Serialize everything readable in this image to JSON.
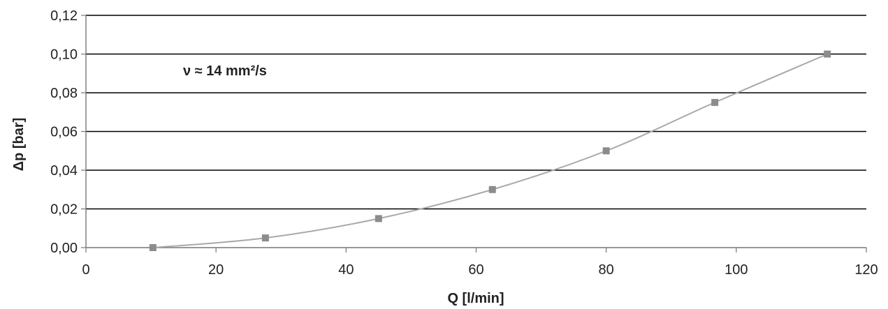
{
  "chart_data": {
    "type": "line",
    "title": "",
    "xlabel": "Q [l/min]",
    "ylabel": "Δp [bar]",
    "annotation": "ν ≈  14 mm²/s",
    "xlim": [
      0,
      120
    ],
    "ylim": [
      0,
      0.12
    ],
    "x_ticks": [
      0,
      20,
      40,
      60,
      80,
      100,
      120
    ],
    "x_tick_labels": [
      "0",
      "20",
      "40",
      "60",
      "80",
      "100",
      "120"
    ],
    "y_ticks": [
      0,
      0.02,
      0.04,
      0.06,
      0.08,
      0.1,
      0.12
    ],
    "y_tick_labels": [
      "0,00",
      "0,02",
      "0,04",
      "0,06",
      "0,08",
      "0,10",
      "0,12"
    ],
    "grid": "horizontal",
    "legend": "none",
    "series": [
      {
        "x": [
          10.3,
          27.6,
          45.0,
          62.5,
          80.0,
          96.7,
          114.0
        ],
        "y": [
          0.0,
          0.005,
          0.015,
          0.03,
          0.05,
          0.075,
          0.1
        ]
      }
    ],
    "colors": {
      "line": "#a8a8a8",
      "marker": "#8c8c8c",
      "grid": "#000000",
      "axis": "#777777"
    }
  }
}
